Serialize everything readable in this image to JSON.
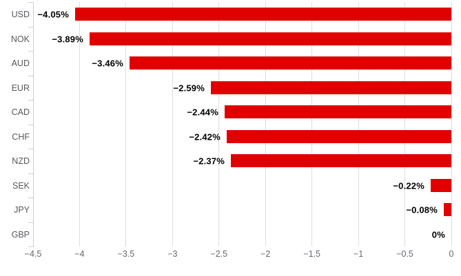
{
  "colors": {
    "bar": "#e00000",
    "grid": "#dcdee3",
    "axis": "#c8d0da",
    "value_label": "#000000",
    "category_label": "#55585c",
    "tick_label": "#63676d",
    "background": "#ffffff"
  },
  "chart_data": {
    "type": "bar",
    "orientation": "horizontal",
    "title": "",
    "xlabel": "",
    "ylabel": "",
    "categories": [
      "USD",
      "NOK",
      "AUD",
      "EUR",
      "CAD",
      "CHF",
      "NZD",
      "SEK",
      "JPY",
      "GBP"
    ],
    "values": [
      -4.05,
      -3.89,
      -3.46,
      -2.59,
      -2.44,
      -2.42,
      -2.37,
      -0.22,
      -0.08,
      0
    ],
    "value_labels": [
      "−4.05%",
      "−3.89%",
      "−3.46%",
      "−2.59%",
      "−2.44%",
      "−2.42%",
      "−2.37%",
      "−0.22%",
      "−0.08%",
      "0%"
    ],
    "x_ticks": [
      -4.5,
      -4,
      -3.5,
      -3,
      -2.5,
      -2,
      -1.5,
      -1,
      -0.5,
      0
    ],
    "x_tick_labels": [
      "−4.5",
      "−4",
      "−3.5",
      "−3",
      "−2.5",
      "−2",
      "−1.5",
      "−1",
      "−0.5",
      "0"
    ],
    "xlim": [
      -4.5,
      0
    ],
    "grid": true,
    "legend": "none",
    "bar_color": "#e00000"
  }
}
